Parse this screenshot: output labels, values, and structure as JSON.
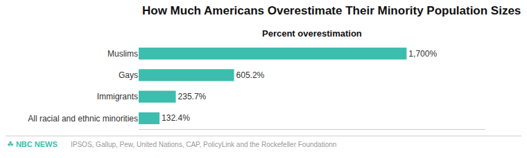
{
  "chart_data": {
    "type": "bar",
    "orientation": "horizontal",
    "title": "How Much Americans Overestimate Their Minority Population Sizes",
    "subtitle": "Percent overestimation",
    "categories": [
      "Muslims",
      "Gays",
      "Immigrants",
      "All racial and ethnic minorities"
    ],
    "values": [
      1700,
      605.2,
      235.7,
      132.4
    ],
    "value_labels": [
      "1,700%",
      "605.2%",
      "235.7%",
      "132.4%"
    ],
    "data_labels": true,
    "color": "#3dbdad",
    "xlim": [
      0,
      2200
    ],
    "xticks": [],
    "tick_labels": "y",
    "grid": false,
    "annotations": [
      "☘ NBC",
      "NEWS",
      "IPSOS, Gallup, Pew, United Nations, CAP, PolicyLink and the Rockefeller Foundationn"
    ]
  }
}
